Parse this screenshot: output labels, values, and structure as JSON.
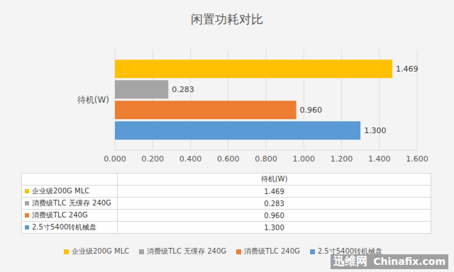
{
  "chart_data": {
    "type": "bar",
    "title": "闲置功耗对比",
    "orientation": "horizontal",
    "categories": [
      "待机(W)"
    ],
    "series": [
      {
        "name": "企业级200G MLC",
        "color": "#FFC000",
        "values": [
          1.469
        ],
        "value_labels": [
          "1.469"
        ]
      },
      {
        "name": "消费级TLC 无缓存 240G",
        "color": "#A5A5A5",
        "values": [
          0.283
        ],
        "value_labels": [
          "0.283"
        ]
      },
      {
        "name": "消费级TLC 240G",
        "color": "#ED7D31",
        "values": [
          0.96
        ],
        "value_labels": [
          "0.960"
        ]
      },
      {
        "name": "2.5寸5400转机械盘",
        "color": "#5B9BD5",
        "values": [
          1.3
        ],
        "value_labels": [
          "1.300"
        ]
      }
    ],
    "xlim": [
      0,
      1.6
    ],
    "xticks": [
      {
        "value": 0,
        "label": "0.000"
      },
      {
        "value": 0.2,
        "label": "0.200"
      },
      {
        "value": 0.4,
        "label": "0.400"
      },
      {
        "value": 0.6,
        "label": "0.600"
      },
      {
        "value": 0.8,
        "label": "0.800"
      },
      {
        "value": 1.0,
        "label": "1.000"
      },
      {
        "value": 1.2,
        "label": "1.200"
      },
      {
        "value": 1.4,
        "label": "1.400"
      },
      {
        "value": 1.6,
        "label": "1.600"
      }
    ],
    "grid": true,
    "data_labels": true,
    "legend": "bottom",
    "annotations": [
      "迅维网",
      "Chinafix.com"
    ]
  }
}
